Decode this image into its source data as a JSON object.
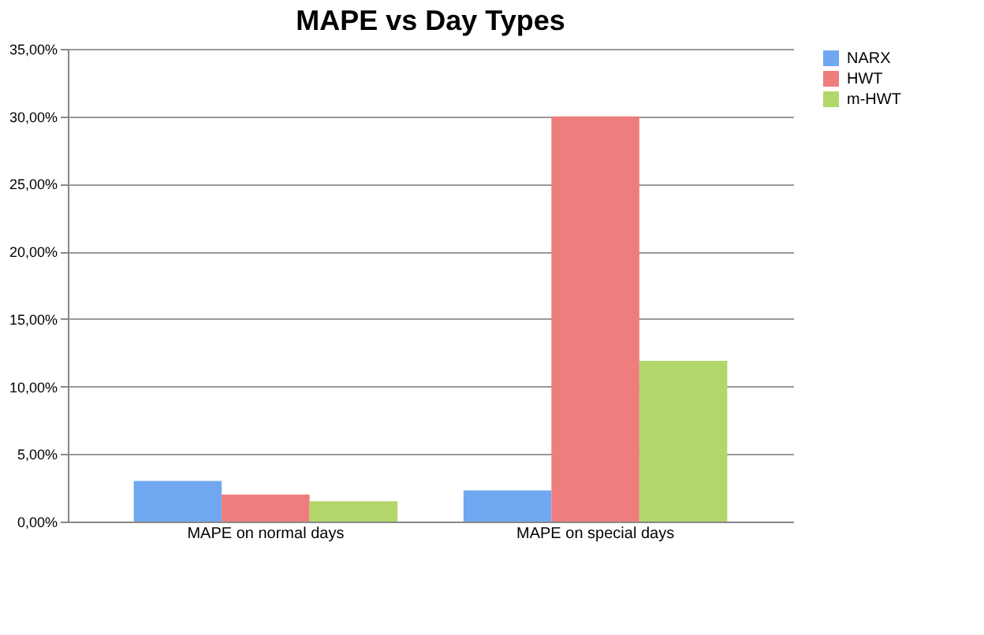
{
  "chart_data": {
    "type": "bar",
    "title": "MAPE vs Day Types",
    "categories": [
      "MAPE on normal days",
      "MAPE on special days"
    ],
    "series": [
      {
        "name": "NARX",
        "color": "#6fa8f0",
        "values": [
          3.0,
          2.3
        ]
      },
      {
        "name": "HWT",
        "color": "#ee7d7d",
        "values": [
          2.0,
          30.0
        ]
      },
      {
        "name": "m-HWT",
        "color": "#b3d66a",
        "values": [
          1.5,
          11.9
        ]
      }
    ],
    "ylim": [
      0,
      35
    ],
    "yticks": [
      {
        "value": 0,
        "label": "0,00%"
      },
      {
        "value": 5,
        "label": "5,00%"
      },
      {
        "value": 10,
        "label": "10,00%"
      },
      {
        "value": 15,
        "label": "15,00%"
      },
      {
        "value": 20,
        "label": "20,00%"
      },
      {
        "value": 25,
        "label": "25,00%"
      },
      {
        "value": 30,
        "label": "30,00%"
      },
      {
        "value": 35,
        "label": "35,00%"
      }
    ],
    "grid": "y",
    "legend": "right"
  }
}
